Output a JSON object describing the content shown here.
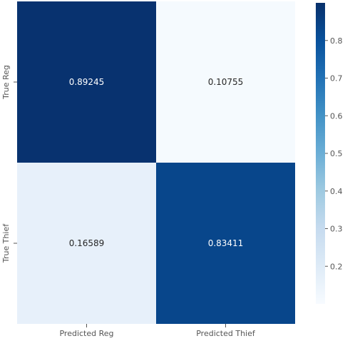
{
  "chart_data": {
    "type": "heatmap",
    "x_categories": [
      "Predicted Reg",
      "Predicted Thief"
    ],
    "y_categories": [
      "True Reg",
      "True Thief"
    ],
    "values": [
      [
        0.89245,
        0.10755
      ],
      [
        0.16589,
        0.83411
      ]
    ],
    "cell_labels": [
      [
        "0.89245",
        "0.10755"
      ],
      [
        "0.16589",
        "0.83411"
      ]
    ],
    "colormap": "Blues",
    "color_range": [
      0.1,
      0.9
    ],
    "colorbar": {
      "ticks": [
        0.2,
        0.3,
        0.4,
        0.5,
        0.6,
        0.7,
        0.8
      ],
      "tick_labels": [
        "0.2",
        "0.3",
        "0.4",
        "0.5",
        "0.6",
        "0.7",
        "0.8"
      ]
    },
    "title": "",
    "xlabel": "",
    "ylabel": ""
  }
}
